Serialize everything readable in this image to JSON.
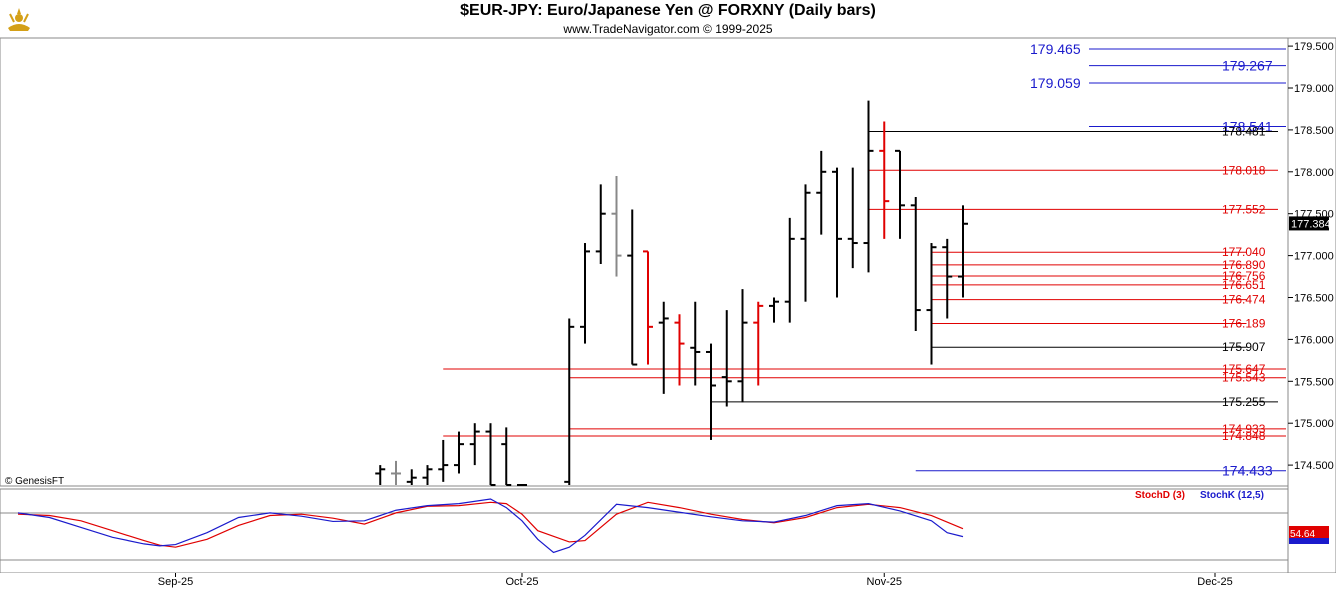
{
  "header": {
    "title": "$EUR-JPY:  Euro/Japanese Yen @ FORXNY  (Daily bars)",
    "subtitle": "www.TradeNavigator.com © 1999-2025"
  },
  "footer": {
    "credit": "© GenesisFT"
  },
  "colors": {
    "up_bar": "#000000",
    "down_bar": "#e00000",
    "blue_level": "#1a1acc",
    "red_level": "#e00000",
    "black_level": "#000000",
    "stoch_d": "#e00000",
    "stoch_k": "#1a1acc",
    "last_price_bg": "#000000"
  },
  "chart_data": [
    {
      "type": "ohlc",
      "title": "$EUR-JPY:  Euro/Japanese Yen @ FORXNY  (Daily bars)",
      "ylim": [
        174.2,
        179.55
      ],
      "x_ticks": [
        {
          "label": "Sep-25",
          "index": 10
        },
        {
          "label": "Oct-25",
          "index": 32
        },
        {
          "label": "Nov-25",
          "index": 55
        },
        {
          "label": "Dec-25",
          "index": 76
        }
      ],
      "y_ticks": [
        "179.500",
        "179.000",
        "178.500",
        "178.000",
        "177.500",
        "177.000",
        "176.500",
        "176.000",
        "175.500",
        "175.000",
        "174.500"
      ],
      "last_price": "177.384",
      "bars": [
        {
          "i": 23,
          "o": 174.4,
          "h": 174.5,
          "l": 174.2,
          "c": 174.45,
          "col": "up"
        },
        {
          "i": 24,
          "o": 174.4,
          "h": 174.55,
          "l": 174.2,
          "c": 174.4,
          "col": "gray"
        },
        {
          "i": 25,
          "o": 174.3,
          "h": 174.45,
          "l": 174.2,
          "c": 174.35,
          "col": "up"
        },
        {
          "i": 26,
          "o": 174.35,
          "h": 174.5,
          "l": 174.2,
          "c": 174.45,
          "col": "up"
        },
        {
          "i": 27,
          "o": 174.45,
          "h": 174.8,
          "l": 174.3,
          "c": 174.5,
          "col": "up"
        },
        {
          "i": 28,
          "o": 174.5,
          "h": 174.9,
          "l": 174.4,
          "c": 174.75,
          "col": "up"
        },
        {
          "i": 29,
          "o": 174.75,
          "h": 175.0,
          "l": 174.5,
          "c": 174.9,
          "col": "up"
        },
        {
          "i": 30,
          "o": 174.9,
          "h": 175.0,
          "l": 174.2,
          "c": 174.25,
          "col": "up"
        },
        {
          "i": 31,
          "o": 174.75,
          "h": 174.95,
          "l": 174.2,
          "c": 174.25,
          "col": "up"
        },
        {
          "i": 32,
          "o": 174.25,
          "h": 174.25,
          "l": 174.2,
          "c": 174.2,
          "col": "up"
        },
        {
          "i": 35,
          "o": 174.3,
          "h": 176.25,
          "l": 174.2,
          "c": 176.15,
          "col": "up"
        },
        {
          "i": 36,
          "o": 176.15,
          "h": 177.15,
          "l": 175.95,
          "c": 177.05,
          "col": "up"
        },
        {
          "i": 37,
          "o": 177.05,
          "h": 177.85,
          "l": 176.9,
          "c": 177.5,
          "col": "up"
        },
        {
          "i": 38,
          "o": 177.5,
          "h": 177.95,
          "l": 176.75,
          "c": 177.0,
          "col": "gray"
        },
        {
          "i": 39,
          "o": 177.0,
          "h": 177.55,
          "l": 175.7,
          "c": 175.7,
          "col": "up"
        },
        {
          "i": 40,
          "o": 177.05,
          "h": 177.05,
          "l": 175.7,
          "c": 176.15,
          "col": "down"
        },
        {
          "i": 41,
          "o": 176.2,
          "h": 176.45,
          "l": 175.35,
          "c": 176.25,
          "col": "up"
        },
        {
          "i": 42,
          "o": 176.2,
          "h": 176.3,
          "l": 175.45,
          "c": 175.95,
          "col": "down"
        },
        {
          "i": 43,
          "o": 175.9,
          "h": 176.45,
          "l": 175.45,
          "c": 175.85,
          "col": "up"
        },
        {
          "i": 44,
          "o": 175.85,
          "h": 175.95,
          "l": 174.8,
          "c": 175.45,
          "col": "up"
        },
        {
          "i": 45,
          "o": 175.55,
          "h": 176.35,
          "l": 175.2,
          "c": 175.5,
          "col": "up"
        },
        {
          "i": 46,
          "o": 175.5,
          "h": 176.6,
          "l": 175.25,
          "c": 176.2,
          "col": "up"
        },
        {
          "i": 47,
          "o": 176.2,
          "h": 176.45,
          "l": 175.45,
          "c": 176.4,
          "col": "down"
        },
        {
          "i": 48,
          "o": 176.4,
          "h": 176.5,
          "l": 176.2,
          "c": 176.45,
          "col": "up"
        },
        {
          "i": 49,
          "o": 176.45,
          "h": 177.45,
          "l": 176.2,
          "c": 177.2,
          "col": "up"
        },
        {
          "i": 50,
          "o": 177.2,
          "h": 177.85,
          "l": 176.45,
          "c": 177.75,
          "col": "up"
        },
        {
          "i": 51,
          "o": 177.75,
          "h": 178.25,
          "l": 177.25,
          "c": 178.0,
          "col": "up"
        },
        {
          "i": 52,
          "o": 178.0,
          "h": 178.05,
          "l": 176.5,
          "c": 177.2,
          "col": "up"
        },
        {
          "i": 53,
          "o": 177.2,
          "h": 178.05,
          "l": 176.85,
          "c": 177.15,
          "col": "up"
        },
        {
          "i": 54,
          "o": 177.15,
          "h": 178.85,
          "l": 176.8,
          "c": 178.25,
          "col": "up"
        },
        {
          "i": 55,
          "o": 178.25,
          "h": 178.6,
          "l": 177.2,
          "c": 177.65,
          "col": "down"
        },
        {
          "i": 56,
          "o": 178.25,
          "h": 178.25,
          "l": 177.2,
          "c": 177.6,
          "col": "up"
        },
        {
          "i": 57,
          "o": 177.6,
          "h": 177.7,
          "l": 176.1,
          "c": 176.35,
          "col": "up"
        },
        {
          "i": 58,
          "o": 176.35,
          "h": 177.15,
          "l": 175.7,
          "c": 177.1,
          "col": "up"
        },
        {
          "i": 59,
          "o": 177.1,
          "h": 177.2,
          "l": 176.25,
          "c": 176.75,
          "col": "up"
        },
        {
          "i": 60,
          "o": 176.75,
          "h": 177.6,
          "l": 176.5,
          "c": 177.38,
          "col": "up"
        }
      ],
      "levels": [
        {
          "label": "179.465",
          "value": 179.465,
          "color": "blue",
          "x0": 68,
          "x1": 99,
          "tx": 64,
          "big": true
        },
        {
          "label": "179.267",
          "value": 179.267,
          "color": "blue",
          "x0": 68,
          "x1": 99,
          "tx": 101,
          "big": true
        },
        {
          "label": "179.059",
          "value": 179.059,
          "color": "blue",
          "x0": 68,
          "x1": 99,
          "tx": 64,
          "big": true
        },
        {
          "label": "178.541",
          "value": 178.541,
          "color": "blue",
          "x0": 68,
          "x1": 99,
          "tx": 101,
          "big": true
        },
        {
          "label": "178.481",
          "value": 178.481,
          "color": "black",
          "x0": 54,
          "x1": 80,
          "tx": 81,
          "big": false
        },
        {
          "label": "178.018",
          "value": 178.018,
          "color": "red",
          "x0": 54,
          "x1": 80,
          "tx": 81,
          "big": false
        },
        {
          "label": "177.552",
          "value": 177.552,
          "color": "red",
          "x0": 54,
          "x1": 80,
          "tx": 81,
          "big": false
        },
        {
          "label": "177.040",
          "value": 177.04,
          "color": "red",
          "x0": 58,
          "x1": 78,
          "tx": 79,
          "big": false
        },
        {
          "label": "176.890",
          "value": 176.89,
          "color": "red",
          "x0": 58,
          "x1": 78,
          "tx": 79,
          "big": false
        },
        {
          "label": "176.756",
          "value": 176.756,
          "color": "red",
          "x0": 58,
          "x1": 78,
          "tx": 79,
          "big": false
        },
        {
          "label": "176.651",
          "value": 176.651,
          "color": "red",
          "x0": 58,
          "x1": 78,
          "tx": 79,
          "big": false
        },
        {
          "label": "176.474",
          "value": 176.474,
          "color": "red",
          "x0": 58,
          "x1": 78,
          "tx": 79,
          "big": false
        },
        {
          "label": "176.189",
          "value": 176.189,
          "color": "red",
          "x0": 58,
          "x1": 78,
          "tx": 79,
          "big": false
        },
        {
          "label": "175.907",
          "value": 175.907,
          "color": "black",
          "x0": 58,
          "x1": 78,
          "tx": 79,
          "big": false
        },
        {
          "label": "175.647",
          "value": 175.647,
          "color": "red",
          "x0": 27,
          "x1": 85,
          "tx": 86,
          "big": false
        },
        {
          "label": "175.543",
          "value": 175.543,
          "color": "red",
          "x0": 35,
          "x1": 90,
          "tx": 91,
          "big": false
        },
        {
          "label": "175.255",
          "value": 175.255,
          "color": "black",
          "x0": 44,
          "x1": 80,
          "tx": 81,
          "big": false
        },
        {
          "label": "174.933",
          "value": 174.933,
          "color": "red",
          "x0": 35,
          "x1": 90,
          "tx": 91,
          "big": false
        },
        {
          "label": "174.848",
          "value": 174.848,
          "color": "red",
          "x0": 27,
          "x1": 85,
          "tx": 86,
          "big": false
        },
        {
          "label": "174.433",
          "value": 174.433,
          "color": "blue",
          "x0": 57,
          "x1": 99,
          "tx": 101,
          "big": true
        }
      ]
    },
    {
      "type": "line",
      "title": "",
      "ylim": [
        0,
        100
      ],
      "legend": [
        "StochD (3)",
        "StochK (12,5)"
      ],
      "last_value": "54.64",
      "series": [
        {
          "name": "StochD (3)",
          "color": "red",
          "points": [
            [
              0,
              80
            ],
            [
              2,
              78
            ],
            [
              4,
              70
            ],
            [
              6,
              55
            ],
            [
              8,
              40
            ],
            [
              9,
              33
            ],
            [
              10,
              30
            ],
            [
              12,
              42
            ],
            [
              14,
              63
            ],
            [
              16,
              78
            ],
            [
              18,
              80
            ],
            [
              20,
              74
            ],
            [
              22,
              65
            ],
            [
              24,
              82
            ],
            [
              26,
              92
            ],
            [
              28,
              93
            ],
            [
              30,
              98
            ],
            [
              31,
              96
            ],
            [
              32,
              80
            ],
            [
              33,
              55
            ],
            [
              35,
              38
            ],
            [
              36,
              40
            ],
            [
              38,
              80
            ],
            [
              40,
              98
            ],
            [
              42,
              90
            ],
            [
              44,
              80
            ],
            [
              46,
              72
            ],
            [
              48,
              67
            ],
            [
              50,
              75
            ],
            [
              52,
              90
            ],
            [
              54,
              95
            ],
            [
              56,
              90
            ],
            [
              58,
              78
            ],
            [
              60,
              58
            ]
          ]
        },
        {
          "name": "StochK (12,5)",
          "color": "blue",
          "points": [
            [
              0,
              82
            ],
            [
              2,
              75
            ],
            [
              4,
              60
            ],
            [
              6,
              45
            ],
            [
              8,
              35
            ],
            [
              9,
              32
            ],
            [
              10,
              34
            ],
            [
              12,
              52
            ],
            [
              14,
              75
            ],
            [
              16,
              82
            ],
            [
              18,
              77
            ],
            [
              20,
              69
            ],
            [
              22,
              70
            ],
            [
              24,
              86
            ],
            [
              26,
              93
            ],
            [
              28,
              96
            ],
            [
              30,
              103
            ],
            [
              31,
              90
            ],
            [
              32,
              70
            ],
            [
              33,
              42
            ],
            [
              34,
              22
            ],
            [
              35,
              30
            ],
            [
              36,
              48
            ],
            [
              38,
              95
            ],
            [
              40,
              90
            ],
            [
              42,
              83
            ],
            [
              44,
              76
            ],
            [
              46,
              70
            ],
            [
              48,
              68
            ],
            [
              50,
              78
            ],
            [
              52,
              93
            ],
            [
              54,
              96
            ],
            [
              56,
              85
            ],
            [
              58,
              70
            ],
            [
              59,
              52
            ],
            [
              60,
              46
            ]
          ]
        }
      ]
    }
  ]
}
